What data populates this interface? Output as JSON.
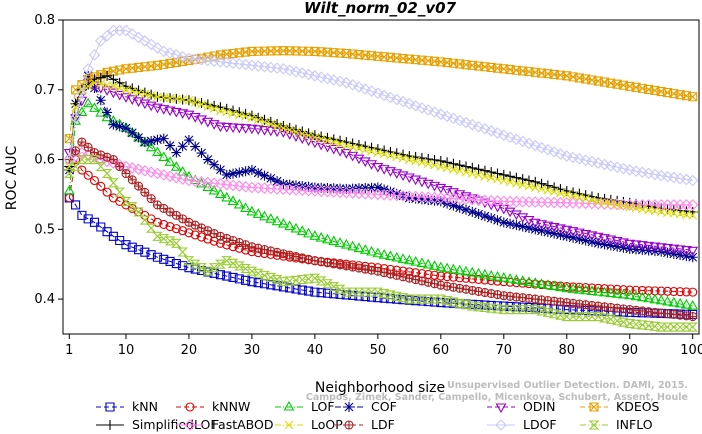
{
  "chart_data": {
    "type": "line",
    "title": "Wilt_norm_02_v07",
    "xlabel": "Neighborhood size",
    "ylabel": "ROC AUC",
    "xlim": [
      0,
      101
    ],
    "ylim": [
      0.35,
      0.8
    ],
    "xticks": [
      1,
      10,
      20,
      30,
      40,
      50,
      60,
      70,
      80,
      90,
      100
    ],
    "yticks": [
      0.4,
      0.5,
      0.6,
      0.7,
      0.8
    ],
    "legend_position": "bottom",
    "watermark": [
      "Unsupervised Outlier Detection. DAMI, 2015.",
      "Campos, Zimek, Sander, Campello, Micenkova, Schubert, Assent, Houle"
    ],
    "series": [
      {
        "name": "kNN",
        "color": "#0000cc",
        "marker": "square",
        "dash": "5,3",
        "points": [
          [
            1,
            0.545
          ],
          [
            2,
            0.535
          ],
          [
            3,
            0.52
          ],
          [
            5,
            0.51
          ],
          [
            8,
            0.49
          ],
          [
            10,
            0.478
          ],
          [
            15,
            0.46
          ],
          [
            20,
            0.445
          ],
          [
            25,
            0.435
          ],
          [
            30,
            0.425
          ],
          [
            40,
            0.41
          ],
          [
            50,
            0.402
          ],
          [
            60,
            0.395
          ],
          [
            70,
            0.39
          ],
          [
            80,
            0.385
          ],
          [
            90,
            0.381
          ],
          [
            100,
            0.378
          ]
        ]
      },
      {
        "name": "kNNW",
        "color": "#dd0000",
        "marker": "circle",
        "dash": "5,3",
        "points": [
          [
            1,
            0.545
          ],
          [
            2,
            0.6
          ],
          [
            3,
            0.585
          ],
          [
            5,
            0.57
          ],
          [
            8,
            0.545
          ],
          [
            10,
            0.535
          ],
          [
            15,
            0.51
          ],
          [
            20,
            0.495
          ],
          [
            25,
            0.48
          ],
          [
            30,
            0.468
          ],
          [
            40,
            0.455
          ],
          [
            50,
            0.445
          ],
          [
            60,
            0.433
          ],
          [
            70,
            0.425
          ],
          [
            80,
            0.418
          ],
          [
            90,
            0.413
          ],
          [
            100,
            0.41
          ]
        ]
      },
      {
        "name": "LOF",
        "color": "#00cc00",
        "marker": "triangle",
        "dash": "6,2,1,2",
        "points": [
          [
            1,
            0.555
          ],
          [
            2,
            0.655
          ],
          [
            4,
            0.68
          ],
          [
            7,
            0.66
          ],
          [
            10,
            0.645
          ],
          [
            15,
            0.61
          ],
          [
            20,
            0.575
          ],
          [
            25,
            0.55
          ],
          [
            30,
            0.525
          ],
          [
            40,
            0.49
          ],
          [
            50,
            0.465
          ],
          [
            60,
            0.445
          ],
          [
            70,
            0.43
          ],
          [
            80,
            0.415
          ],
          [
            90,
            0.405
          ],
          [
            100,
            0.39
          ]
        ]
      },
      {
        "name": "COF",
        "color": "#00008b",
        "marker": "asterisk",
        "dash": "6,2,1,2",
        "points": [
          [
            1,
            0.585
          ],
          [
            2,
            0.68
          ],
          [
            4,
            0.72
          ],
          [
            6,
            0.685
          ],
          [
            8,
            0.65
          ],
          [
            10,
            0.645
          ],
          [
            13,
            0.625
          ],
          [
            16,
            0.63
          ],
          [
            18,
            0.61
          ],
          [
            20,
            0.628
          ],
          [
            23,
            0.6
          ],
          [
            26,
            0.578
          ],
          [
            30,
            0.585
          ],
          [
            35,
            0.565
          ],
          [
            40,
            0.56
          ],
          [
            45,
            0.558
          ],
          [
            50,
            0.56
          ],
          [
            55,
            0.545
          ],
          [
            60,
            0.54
          ],
          [
            65,
            0.525
          ],
          [
            70,
            0.51
          ],
          [
            75,
            0.5
          ],
          [
            80,
            0.49
          ],
          [
            85,
            0.48
          ],
          [
            90,
            0.472
          ],
          [
            95,
            0.468
          ],
          [
            100,
            0.46
          ]
        ]
      },
      {
        "name": "ODIN",
        "color": "#9900cc",
        "marker": "triangledown",
        "dash": "5,3",
        "points": [
          [
            1,
            0.61
          ],
          [
            2,
            0.66
          ],
          [
            4,
            0.71
          ],
          [
            7,
            0.7
          ],
          [
            10,
            0.69
          ],
          [
            15,
            0.675
          ],
          [
            20,
            0.665
          ],
          [
            25,
            0.648
          ],
          [
            30,
            0.645
          ],
          [
            35,
            0.64
          ],
          [
            40,
            0.625
          ],
          [
            45,
            0.61
          ],
          [
            50,
            0.59
          ],
          [
            55,
            0.575
          ],
          [
            60,
            0.56
          ],
          [
            65,
            0.545
          ],
          [
            70,
            0.53
          ],
          [
            75,
            0.51
          ],
          [
            80,
            0.5
          ],
          [
            85,
            0.49
          ],
          [
            90,
            0.48
          ],
          [
            95,
            0.475
          ],
          [
            100,
            0.47
          ]
        ]
      },
      {
        "name": "KDEOS",
        "color": "#e6a000",
        "marker": "squarex",
        "dash": "5,3",
        "points": [
          [
            1,
            0.63
          ],
          [
            2,
            0.7
          ],
          [
            4,
            0.715
          ],
          [
            7,
            0.725
          ],
          [
            10,
            0.73
          ],
          [
            15,
            0.735
          ],
          [
            20,
            0.742
          ],
          [
            25,
            0.75
          ],
          [
            30,
            0.755
          ],
          [
            35,
            0.756
          ],
          [
            40,
            0.755
          ],
          [
            45,
            0.752
          ],
          [
            50,
            0.748
          ],
          [
            60,
            0.74
          ],
          [
            70,
            0.73
          ],
          [
            80,
            0.72
          ],
          [
            90,
            0.705
          ],
          [
            100,
            0.69
          ]
        ]
      },
      {
        "name": "SimplifiedLOF",
        "color": "#000000",
        "marker": "plus",
        "dash": "",
        "points": [
          [
            1,
            0.59
          ],
          [
            2,
            0.68
          ],
          [
            3,
            0.7
          ],
          [
            5,
            0.715
          ],
          [
            7,
            0.72
          ],
          [
            10,
            0.705
          ],
          [
            15,
            0.69
          ],
          [
            20,
            0.685
          ],
          [
            25,
            0.675
          ],
          [
            30,
            0.663
          ],
          [
            35,
            0.648
          ],
          [
            40,
            0.635
          ],
          [
            45,
            0.625
          ],
          [
            50,
            0.615
          ],
          [
            55,
            0.605
          ],
          [
            60,
            0.598
          ],
          [
            65,
            0.588
          ],
          [
            70,
            0.578
          ],
          [
            75,
            0.568
          ],
          [
            80,
            0.555
          ],
          [
            85,
            0.545
          ],
          [
            90,
            0.538
          ],
          [
            95,
            0.53
          ],
          [
            100,
            0.525
          ]
        ]
      },
      {
        "name": "FastABOD",
        "color": "#ff88ee",
        "marker": "diamond",
        "dash": "",
        "points": [
          [
            1,
            0.6
          ],
          [
            3,
            0.61
          ],
          [
            6,
            0.6
          ],
          [
            10,
            0.59
          ],
          [
            15,
            0.58
          ],
          [
            20,
            0.57
          ],
          [
            25,
            0.565
          ],
          [
            30,
            0.56
          ],
          [
            40,
            0.555
          ],
          [
            50,
            0.55
          ],
          [
            60,
            0.545
          ],
          [
            70,
            0.54
          ],
          [
            80,
            0.538
          ],
          [
            90,
            0.535
          ],
          [
            100,
            0.535
          ]
        ]
      },
      {
        "name": "LoOP",
        "color": "#dddd00",
        "marker": "x",
        "dash": "6,2,1,2",
        "points": [
          [
            1,
            0.59
          ],
          [
            2,
            0.675
          ],
          [
            3,
            0.7
          ],
          [
            5,
            0.71
          ],
          [
            8,
            0.705
          ],
          [
            10,
            0.7
          ],
          [
            15,
            0.69
          ],
          [
            20,
            0.685
          ],
          [
            25,
            0.67
          ],
          [
            30,
            0.66
          ],
          [
            35,
            0.645
          ],
          [
            40,
            0.632
          ],
          [
            45,
            0.62
          ],
          [
            50,
            0.61
          ],
          [
            55,
            0.6
          ],
          [
            60,
            0.59
          ],
          [
            65,
            0.58
          ],
          [
            70,
            0.57
          ],
          [
            75,
            0.56
          ],
          [
            80,
            0.55
          ],
          [
            85,
            0.54
          ],
          [
            90,
            0.532
          ],
          [
            95,
            0.525
          ],
          [
            100,
            0.52
          ]
        ]
      },
      {
        "name": "LDF",
        "color": "#aa2222",
        "marker": "circleplus",
        "dash": "5,3",
        "points": [
          [
            1,
            0.6
          ],
          [
            3,
            0.625
          ],
          [
            5,
            0.61
          ],
          [
            8,
            0.6
          ],
          [
            10,
            0.58
          ],
          [
            15,
            0.535
          ],
          [
            20,
            0.51
          ],
          [
            25,
            0.49
          ],
          [
            30,
            0.475
          ],
          [
            40,
            0.455
          ],
          [
            50,
            0.44
          ],
          [
            60,
            0.42
          ],
          [
            70,
            0.405
          ],
          [
            80,
            0.395
          ],
          [
            90,
            0.385
          ],
          [
            100,
            0.375
          ]
        ]
      },
      {
        "name": "LDOF",
        "color": "#c8c8ff",
        "marker": "diamond",
        "dash": "",
        "points": [
          [
            1,
            0.6
          ],
          [
            2,
            0.66
          ],
          [
            4,
            0.73
          ],
          [
            6,
            0.77
          ],
          [
            8,
            0.785
          ],
          [
            10,
            0.785
          ],
          [
            13,
            0.77
          ],
          [
            16,
            0.755
          ],
          [
            20,
            0.745
          ],
          [
            25,
            0.74
          ],
          [
            30,
            0.735
          ],
          [
            35,
            0.73
          ],
          [
            40,
            0.72
          ],
          [
            45,
            0.71
          ],
          [
            50,
            0.695
          ],
          [
            55,
            0.68
          ],
          [
            60,
            0.665
          ],
          [
            65,
            0.65
          ],
          [
            70,
            0.635
          ],
          [
            75,
            0.62
          ],
          [
            80,
            0.605
          ],
          [
            85,
            0.595
          ],
          [
            90,
            0.585
          ],
          [
            95,
            0.577
          ],
          [
            100,
            0.57
          ]
        ]
      },
      {
        "name": "INFLO",
        "color": "#99cc33",
        "marker": "hourglass",
        "dash": "6,2,1,2",
        "points": [
          [
            1,
            0.58
          ],
          [
            3,
            0.6
          ],
          [
            5,
            0.6
          ],
          [
            7,
            0.58
          ],
          [
            10,
            0.54
          ],
          [
            12,
            0.525
          ],
          [
            15,
            0.49
          ],
          [
            18,
            0.48
          ],
          [
            20,
            0.455
          ],
          [
            23,
            0.44
          ],
          [
            26,
            0.455
          ],
          [
            30,
            0.44
          ],
          [
            35,
            0.425
          ],
          [
            40,
            0.43
          ],
          [
            45,
            0.41
          ],
          [
            50,
            0.41
          ],
          [
            55,
            0.4
          ],
          [
            60,
            0.4
          ],
          [
            65,
            0.39
          ],
          [
            70,
            0.385
          ],
          [
            75,
            0.385
          ],
          [
            80,
            0.375
          ],
          [
            85,
            0.375
          ],
          [
            90,
            0.365
          ],
          [
            95,
            0.36
          ],
          [
            100,
            0.36
          ]
        ]
      }
    ]
  }
}
